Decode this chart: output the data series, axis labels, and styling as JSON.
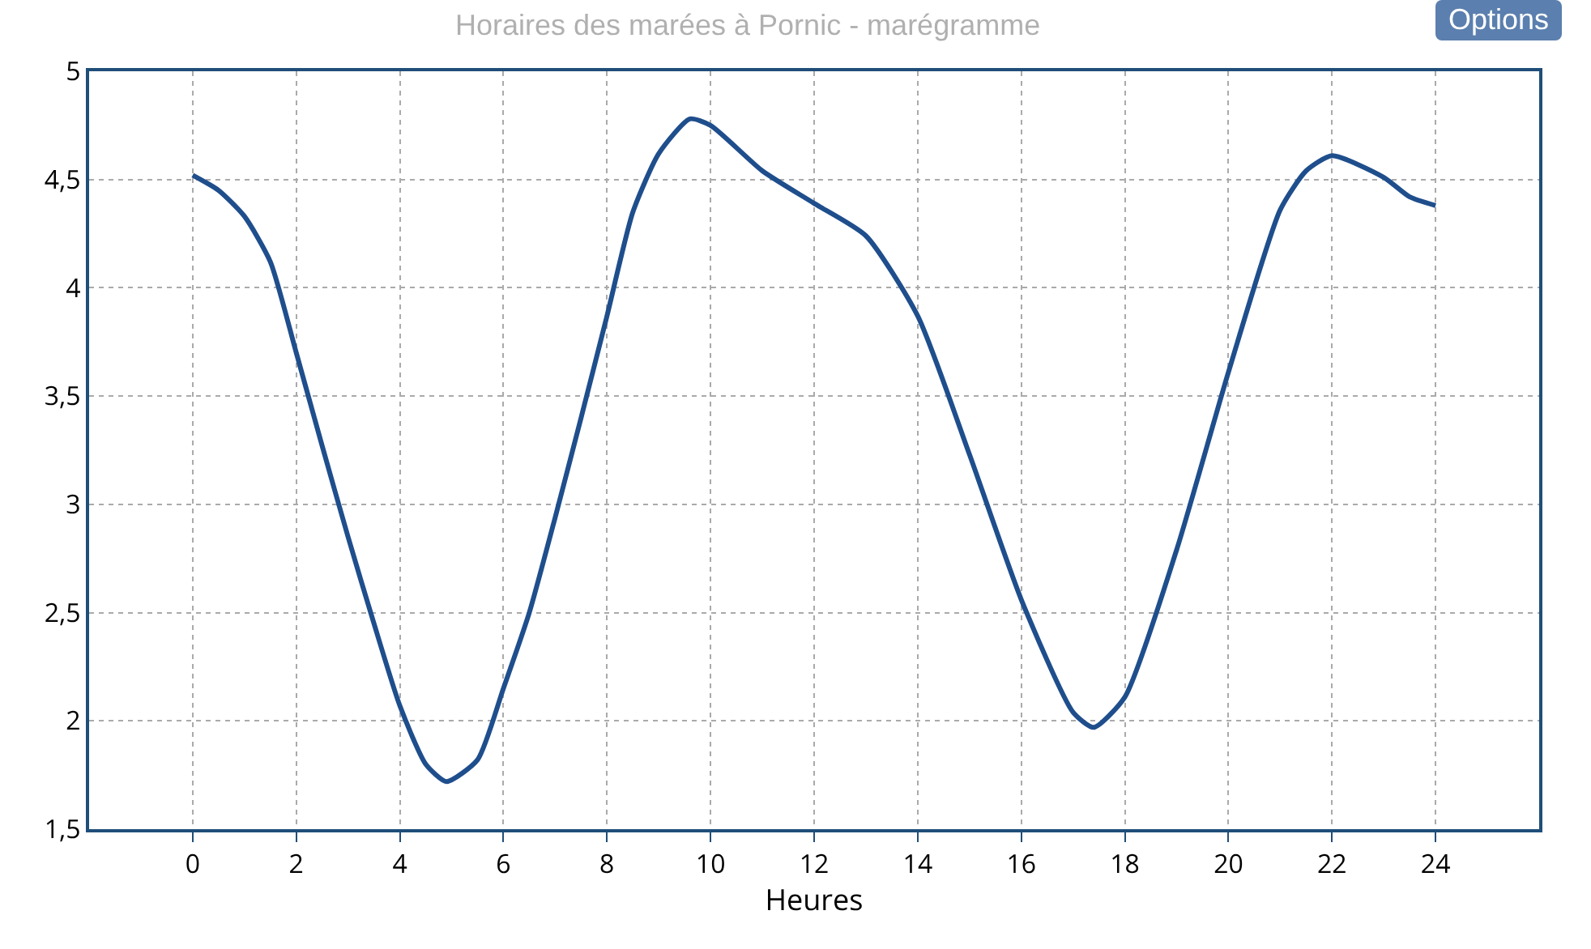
{
  "chart_data": {
    "type": "line",
    "title": "Horaires des marées à Pornic - marégramme",
    "xlabel": "Heures",
    "annotations": [
      "Options"
    ],
    "x": [
      0,
      0.5,
      1,
      1.5,
      2,
      2.5,
      3,
      3.5,
      4,
      4.5,
      4.9,
      5.5,
      6,
      6.5,
      7,
      7.5,
      8,
      8.5,
      9,
      9.6,
      10,
      11,
      12,
      13,
      14,
      15,
      16,
      17,
      17.4,
      18,
      19,
      20,
      21,
      21.5,
      22,
      23,
      23.5,
      24
    ],
    "series": [
      {
        "color": "#1f4e8c",
        "values": [
          4.52,
          4.45,
          4.33,
          4.12,
          3.7,
          3.27,
          2.85,
          2.45,
          2.07,
          1.8,
          1.72,
          1.82,
          2.15,
          2.5,
          2.94,
          3.4,
          3.87,
          4.35,
          4.62,
          4.78,
          4.75,
          4.54,
          4.39,
          4.24,
          3.87,
          3.23,
          2.56,
          2.04,
          1.97,
          2.11,
          2.79,
          3.61,
          4.36,
          4.54,
          4.61,
          4.51,
          4.42,
          4.38
        ]
      }
    ],
    "xlim": [
      -2,
      26
    ],
    "xticks": [
      0,
      2,
      4,
      6,
      8,
      10,
      12,
      14,
      16,
      18,
      20,
      22,
      24
    ],
    "ylim": [
      1.5,
      5
    ],
    "yticks": [
      {
        "value": 1.5,
        "label": "1,5"
      },
      2,
      {
        "value": 2.5,
        "label": "2,5"
      },
      3,
      {
        "value": 3.5,
        "label": "3,5"
      },
      4,
      {
        "value": 4.5,
        "label": "4,5"
      },
      5
    ],
    "grid": true,
    "marker": "none",
    "line_style": "solid"
  }
}
